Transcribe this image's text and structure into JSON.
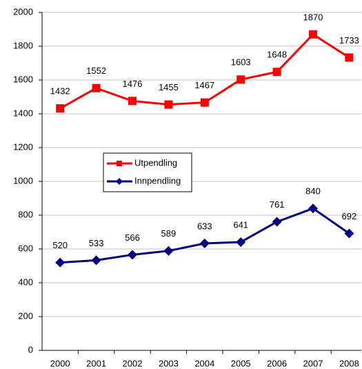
{
  "chart_data": {
    "type": "line",
    "categories": [
      "2000",
      "2001",
      "2002",
      "2003",
      "2004",
      "2005",
      "2006",
      "2007",
      "2008"
    ],
    "series": [
      {
        "name": "Utpendling",
        "color": "#ff0000",
        "marker": "square",
        "values": [
          1432,
          1552,
          1476,
          1455,
          1467,
          1603,
          1648,
          1870,
          1733
        ]
      },
      {
        "name": "Innpendling",
        "color": "#000080",
        "marker": "diamond",
        "values": [
          520,
          533,
          566,
          589,
          633,
          641,
          761,
          840,
          692
        ]
      }
    ],
    "ylim": [
      0,
      2000
    ],
    "yticks": [
      0,
      200,
      400,
      600,
      800,
      1000,
      1200,
      1400,
      1600,
      1800,
      2000
    ],
    "grid": true,
    "legend": "center-left"
  }
}
